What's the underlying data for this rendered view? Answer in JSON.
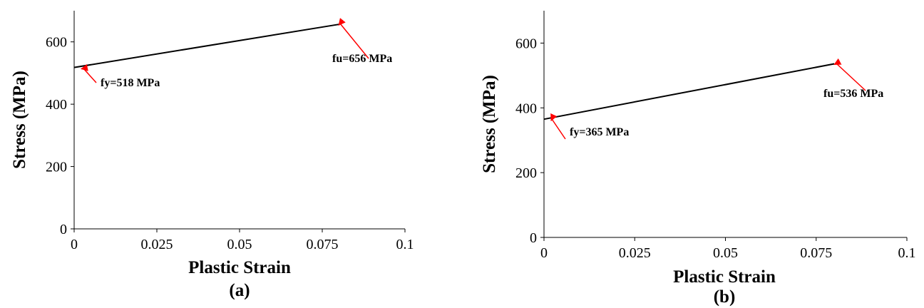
{
  "chart_data": [
    {
      "type": "line",
      "panel_label": "(a)",
      "xlabel": "Plastic Strain",
      "ylabel": "Stress (MPa)",
      "xlim": [
        0,
        0.1
      ],
      "ylim": [
        0,
        700
      ],
      "x_ticks": [
        "0",
        "0.025",
        "0.05",
        "0.075",
        "0.1"
      ],
      "y_ticks": [
        "0",
        "200",
        "400",
        "600"
      ],
      "grid": false,
      "series": [
        {
          "x": [
            0,
            0.08
          ],
          "y": [
            518,
            656
          ],
          "color": "#000000"
        }
      ],
      "annotations": [
        {
          "text": "fy=518 MPa",
          "x": 0,
          "y": 518,
          "arrow_color": "#ff0000"
        },
        {
          "text": "fu=656 MPa",
          "x": 0.08,
          "y": 656,
          "arrow_color": "#ff0000"
        }
      ]
    },
    {
      "type": "line",
      "panel_label": "(b)",
      "xlabel": "Plastic Strain",
      "ylabel": "Stress (MPa)",
      "xlim": [
        0,
        0.1
      ],
      "ylim": [
        0,
        700
      ],
      "x_ticks": [
        "0",
        "0.025",
        "0.05",
        "0.075",
        "0.1"
      ],
      "y_ticks": [
        "0",
        "200",
        "400",
        "600"
      ],
      "grid": false,
      "series": [
        {
          "x": [
            0,
            0.08
          ],
          "y": [
            365,
            536
          ],
          "color": "#000000"
        }
      ],
      "annotations": [
        {
          "text": "fy=365 MPa",
          "x": 0,
          "y": 365,
          "arrow_color": "#ff0000"
        },
        {
          "text": "fu=536 MPa",
          "x": 0.08,
          "y": 536,
          "arrow_color": "#ff0000"
        }
      ]
    }
  ]
}
